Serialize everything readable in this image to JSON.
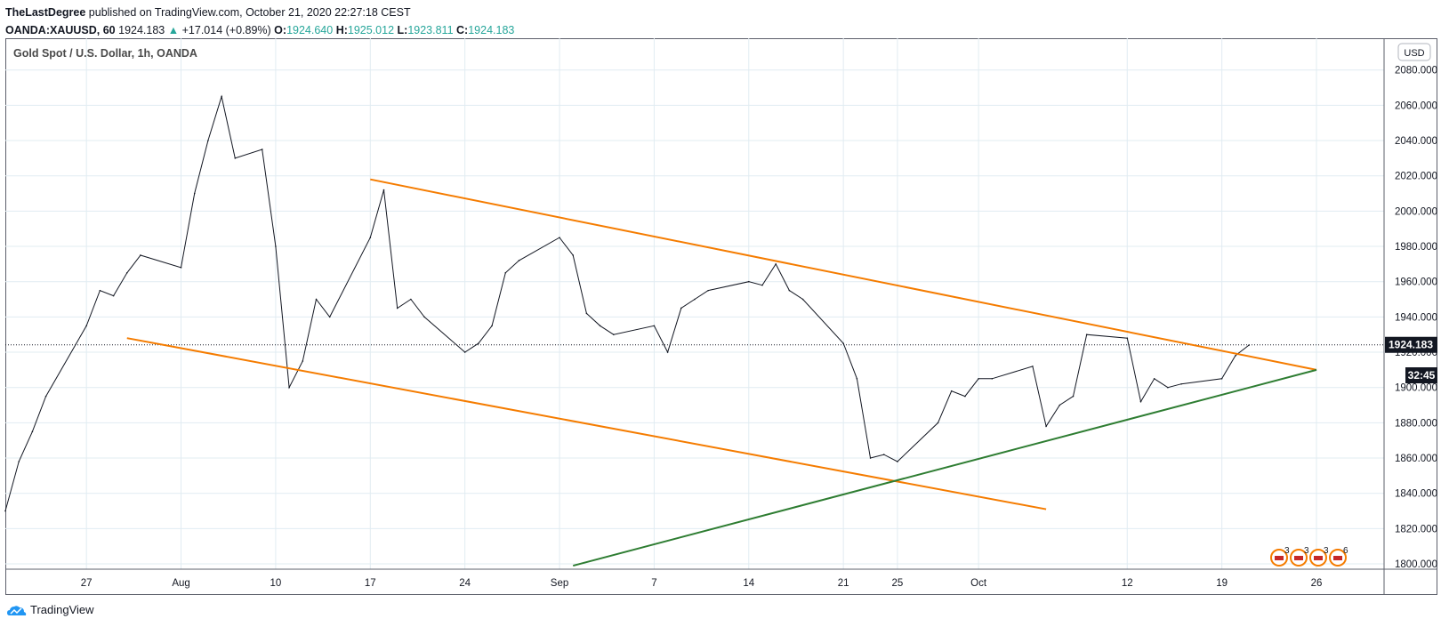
{
  "header": {
    "author": "TheLastDegree",
    "published": "published on TradingView.com, October 21, 2020 22:27:18 CEST",
    "symbol": "OANDA:XAUUSD, 60",
    "last": "1924.183",
    "change": "+17.014 (+0.89%)",
    "o_label": "O:",
    "o_val": "1924.640",
    "h_label": "H:",
    "h_val": "1925.012",
    "l_label": "L:",
    "l_val": "1923.811",
    "c_label": "C:",
    "c_val": "1924.183"
  },
  "chart_title": "Gold Spot / U.S. Dollar, 1h, OANDA",
  "currency_badge": "USD",
  "price_tag": "1924.183",
  "countdown_tag": "32:45",
  "footer_logo": "TradingView",
  "colors": {
    "price_line": "#131722",
    "resistance": "#f57c00",
    "support": "#2e7d32",
    "tag_bg": "#131722",
    "grid": "#e1ecf2"
  },
  "event_badges": [
    "3",
    "3",
    "3",
    "6"
  ],
  "chart_data": {
    "type": "line",
    "ylim": [
      1797,
      2098
    ],
    "yticks": [
      "2080.000",
      "2060.000",
      "2040.000",
      "2020.000",
      "2000.000",
      "1980.000",
      "1960.000",
      "1940.000",
      "1920.000",
      "1900.000",
      "1880.000",
      "1860.000",
      "1840.000",
      "1820.000",
      "1800.000"
    ],
    "xticks": [
      "27",
      "Aug",
      "10",
      "17",
      "24",
      "Sep",
      "7",
      "14",
      "21",
      "25",
      "Oct",
      "12",
      "19",
      "26"
    ],
    "x_domain": [
      "2020-07-21",
      "2020-10-31"
    ],
    "xtick_dates": [
      "2020-07-27",
      "2020-08-03",
      "2020-08-10",
      "2020-08-17",
      "2020-08-24",
      "2020-08-31",
      "2020-09-07",
      "2020-09-14",
      "2020-09-21",
      "2020-09-25",
      "2020-10-01",
      "2020-10-12",
      "2020-10-19",
      "2020-10-26"
    ],
    "series": [
      {
        "dates": [
          "2020-07-21",
          "2020-07-22",
          "2020-07-23",
          "2020-07-24",
          "2020-07-27",
          "2020-07-28",
          "2020-07-29",
          "2020-07-30",
          "2020-07-31",
          "2020-08-03",
          "2020-08-04",
          "2020-08-05",
          "2020-08-06",
          "2020-08-07",
          "2020-08-09",
          "2020-08-10",
          "2020-08-11",
          "2020-08-12",
          "2020-08-13",
          "2020-08-14",
          "2020-08-17",
          "2020-08-18",
          "2020-08-19",
          "2020-08-20",
          "2020-08-21",
          "2020-08-24",
          "2020-08-25",
          "2020-08-26",
          "2020-08-27",
          "2020-08-28",
          "2020-08-31",
          "2020-09-01",
          "2020-09-02",
          "2020-09-03",
          "2020-09-04",
          "2020-09-07",
          "2020-09-08",
          "2020-09-09",
          "2020-09-10",
          "2020-09-11",
          "2020-09-14",
          "2020-09-15",
          "2020-09-16",
          "2020-09-17",
          "2020-09-18",
          "2020-09-21",
          "2020-09-22",
          "2020-09-23",
          "2020-09-24",
          "2020-09-25",
          "2020-09-28",
          "2020-09-29",
          "2020-09-30",
          "2020-10-01",
          "2020-10-02",
          "2020-10-05",
          "2020-10-06",
          "2020-10-07",
          "2020-10-08",
          "2020-10-09",
          "2020-10-12",
          "2020-10-13",
          "2020-10-14",
          "2020-10-15",
          "2020-10-16",
          "2020-10-19",
          "2020-10-20",
          "2020-10-21"
        ],
        "values": [
          1830,
          1858,
          1875,
          1895,
          1935,
          1955,
          1952,
          1965,
          1975,
          1968,
          2010,
          2040,
          2065,
          2030,
          2035,
          1980,
          1900,
          1915,
          1950,
          1940,
          1985,
          2012,
          1945,
          1950,
          1940,
          1920,
          1925,
          1935,
          1965,
          1972,
          1985,
          1975,
          1942,
          1935,
          1930,
          1935,
          1920,
          1945,
          1950,
          1955,
          1960,
          1958,
          1970,
          1955,
          1950,
          1925,
          1905,
          1860,
          1862,
          1858,
          1880,
          1898,
          1895,
          1905,
          1905,
          1912,
          1878,
          1890,
          1895,
          1930,
          1928,
          1892,
          1905,
          1900,
          1902,
          1905,
          1918,
          1924
        ]
      }
    ],
    "annotations": [
      {
        "name": "resistance-trendline",
        "from": [
          "2020-08-17",
          2018
        ],
        "to": [
          "2020-10-26",
          1910
        ]
      },
      {
        "name": "lower-channel-line",
        "from": [
          "2020-07-30",
          1928
        ],
        "to": [
          "2020-10-06",
          1831
        ]
      },
      {
        "name": "support-trendline",
        "from": [
          "2020-09-01",
          1799
        ],
        "to": [
          "2020-10-26",
          1910
        ]
      }
    ],
    "last_price": 1924.183
  }
}
